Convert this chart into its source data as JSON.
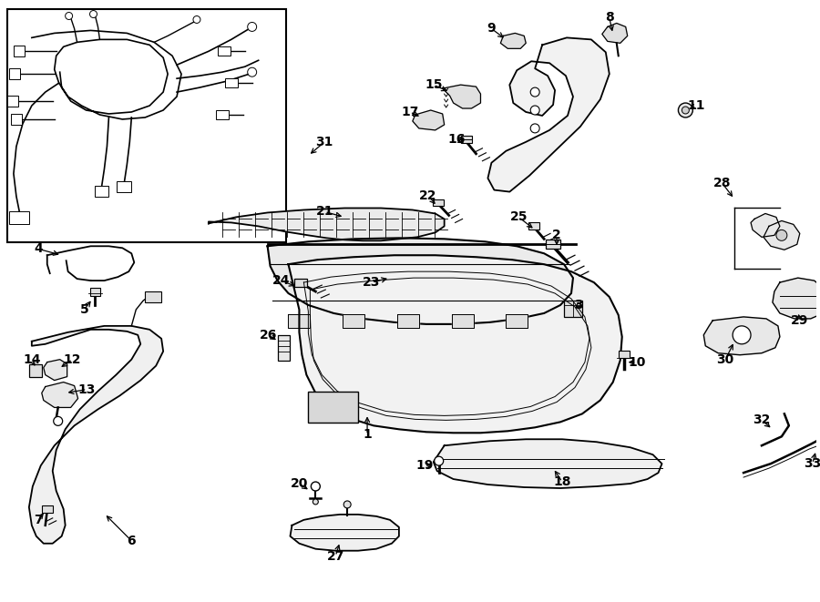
{
  "bg_color": "#ffffff",
  "line_color": "#000000",
  "fontsize": 10,
  "fig_w": 9.0,
  "fig_h": 6.61,
  "dpi": 100
}
